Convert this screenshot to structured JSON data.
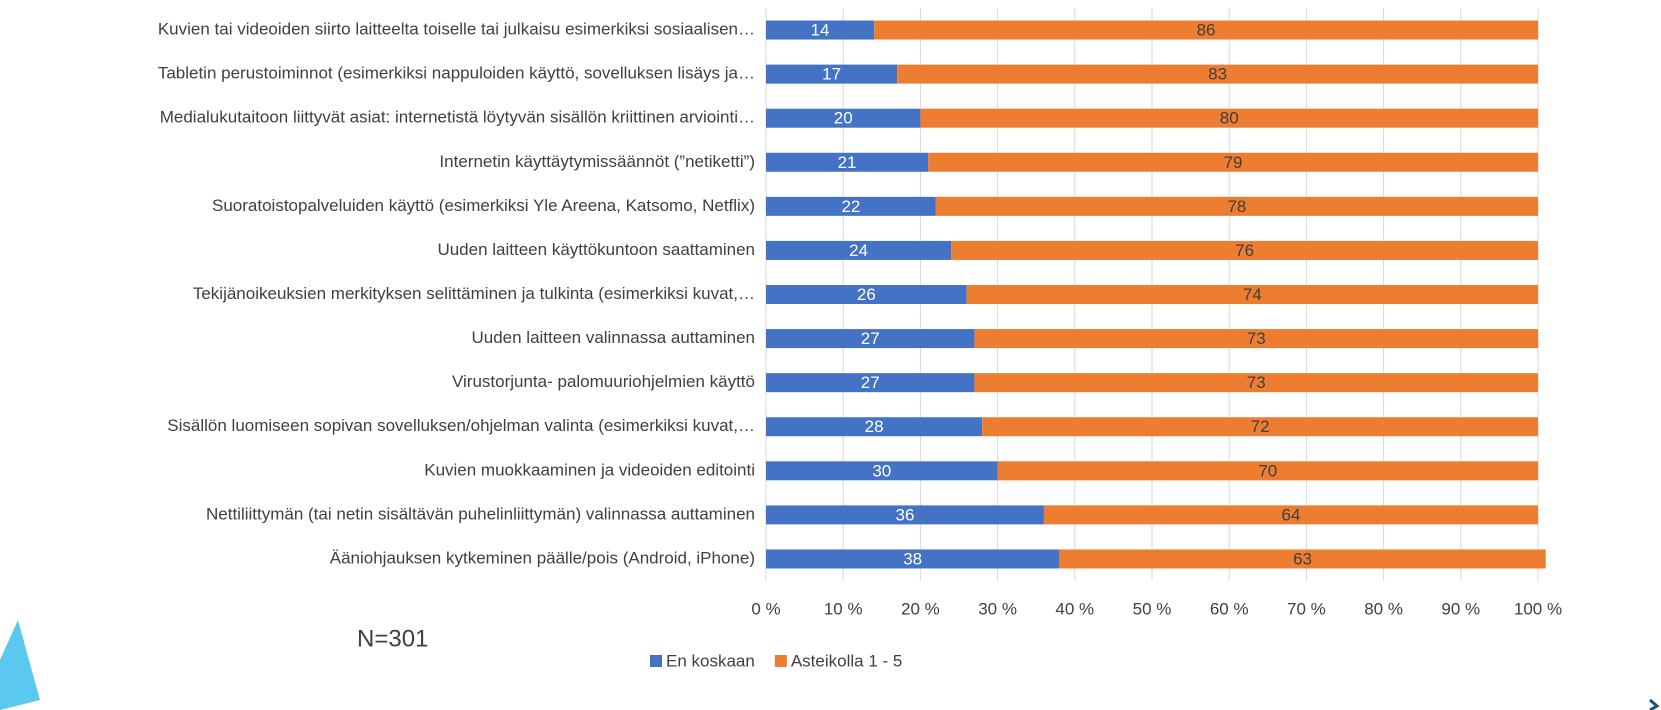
{
  "chart_data": {
    "type": "stacked_barh",
    "categories": [
      "Kuvien tai videoiden siirto laitteelta toiselle tai julkaisu esimerkiksi sosiaalisen…",
      "Tabletin perustoiminnot (esimerkiksi nappuloiden käyttö, sovelluksen lisäys ja…",
      "Medialukutaitoon liittyvät asiat: internetistä löytyvän sisällön kriittinen arviointi…",
      "Internetin käyttäytymissäännöt (”netiketti”)",
      "Suoratoistopalveluiden käyttö (esimerkiksi Yle Areena, Katsomo, Netflix)",
      "Uuden laitteen käyttökuntoon saattaminen",
      "Tekijänoikeuksien merkityksen selittäminen ja tulkinta (esimerkiksi kuvat,…",
      "Uuden laitteen valinnassa auttaminen",
      "Virustorjunta- palomuuriohjelmien käyttö",
      "Sisällön luomiseen sopivan sovelluksen/ohjelman valinta (esimerkiksi kuvat,…",
      "Kuvien muokkaaminen ja videoiden editointi",
      "Nettiliittymän (tai netin sisältävän puhelinliittymän) valinnassa auttaminen",
      "Ääniohjauksen kytkeminen päälle/pois (Android, iPhone)"
    ],
    "series": [
      {
        "name": "En koskaan",
        "color": "#4472c4",
        "values": [
          14,
          17,
          20,
          21,
          22,
          24,
          26,
          27,
          27,
          28,
          30,
          36,
          38
        ]
      },
      {
        "name": "Asteikolla 1 - 5",
        "color": "#ed7d31",
        "values": [
          86,
          83,
          80,
          79,
          78,
          76,
          74,
          73,
          73,
          72,
          70,
          64,
          63
        ]
      }
    ],
    "xlim": [
      0,
      100
    ],
    "xticks": [
      {
        "value": 0,
        "label": "0 %"
      },
      {
        "value": 10,
        "label": "10 %"
      },
      {
        "value": 20,
        "label": "20 %"
      },
      {
        "value": 30,
        "label": "30 %"
      },
      {
        "value": 40,
        "label": "40 %"
      },
      {
        "value": 50,
        "label": "50 %"
      },
      {
        "value": 60,
        "label": "60 %"
      },
      {
        "value": 70,
        "label": "70 %"
      },
      {
        "value": 80,
        "label": "80 %"
      },
      {
        "value": 90,
        "label": "90 %"
      },
      {
        "value": 100,
        "label": "100 %"
      }
    ],
    "grid": true,
    "legend": "bottom",
    "annotation": "N=301"
  }
}
